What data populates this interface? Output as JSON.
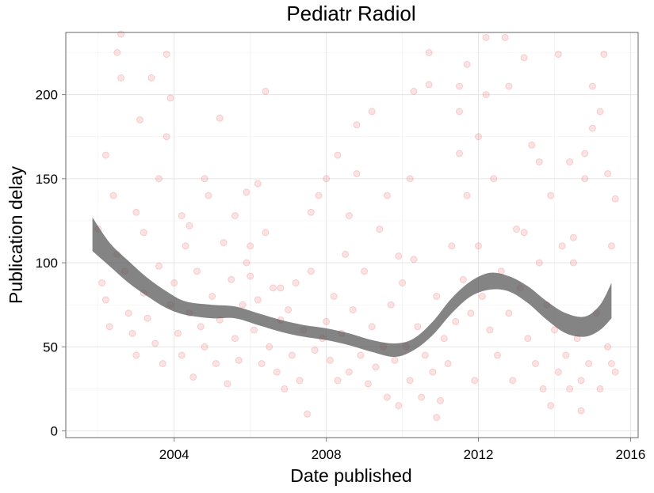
{
  "chart_data": {
    "type": "scatter",
    "title": "Pediatr Radiol",
    "xlabel": "Date published",
    "ylabel": "Publication delay",
    "xlim": [
      2001.15,
      2016.2
    ],
    "ylim": [
      -4,
      237
    ],
    "x_ticks": [
      2004,
      2008,
      2012,
      2016
    ],
    "x_tick_labels": [
      "2004",
      "2008",
      "2012",
      "2016"
    ],
    "y_ticks": [
      0,
      50,
      100,
      150,
      200
    ],
    "y_tick_labels": [
      "0",
      "50",
      "100",
      "150",
      "200"
    ],
    "grid": true,
    "point_color": "#e31a1c",
    "point_alpha": 0.12,
    "smooth_color": "#555555",
    "smooth_opacity": 0.72,
    "smooth": [
      {
        "x": 2001.85,
        "lo": 107,
        "hi": 127
      },
      {
        "x": 2002.3,
        "lo": 98,
        "hi": 112
      },
      {
        "x": 2002.8,
        "lo": 88,
        "hi": 101
      },
      {
        "x": 2003.3,
        "lo": 80,
        "hi": 91
      },
      {
        "x": 2003.8,
        "lo": 73,
        "hi": 83
      },
      {
        "x": 2004.3,
        "lo": 69,
        "hi": 77
      },
      {
        "x": 2005.0,
        "lo": 67,
        "hi": 75
      },
      {
        "x": 2005.6,
        "lo": 67,
        "hi": 74
      },
      {
        "x": 2006.2,
        "lo": 63,
        "hi": 70
      },
      {
        "x": 2006.8,
        "lo": 59,
        "hi": 66
      },
      {
        "x": 2007.4,
        "lo": 56,
        "hi": 63
      },
      {
        "x": 2008.0,
        "lo": 54,
        "hi": 61
      },
      {
        "x": 2008.6,
        "lo": 51,
        "hi": 58
      },
      {
        "x": 2009.2,
        "lo": 47,
        "hi": 54
      },
      {
        "x": 2009.8,
        "lo": 44,
        "hi": 52
      },
      {
        "x": 2010.3,
        "lo": 48,
        "hi": 55
      },
      {
        "x": 2010.8,
        "lo": 57,
        "hi": 65
      },
      {
        "x": 2011.3,
        "lo": 70,
        "hi": 79
      },
      {
        "x": 2011.8,
        "lo": 80,
        "hi": 89
      },
      {
        "x": 2012.3,
        "lo": 84,
        "hi": 94
      },
      {
        "x": 2012.8,
        "lo": 83,
        "hi": 92
      },
      {
        "x": 2013.3,
        "lo": 76,
        "hi": 86
      },
      {
        "x": 2013.8,
        "lo": 66,
        "hi": 77
      },
      {
        "x": 2014.3,
        "lo": 58,
        "hi": 70
      },
      {
        "x": 2014.8,
        "lo": 56,
        "hi": 68
      },
      {
        "x": 2015.2,
        "lo": 60,
        "hi": 75
      },
      {
        "x": 2015.5,
        "lo": 67,
        "hi": 88
      }
    ],
    "points": [
      [
        2002.0,
        120
      ],
      [
        2002.1,
        88
      ],
      [
        2002.2,
        78
      ],
      [
        2002.3,
        62
      ],
      [
        2002.4,
        140
      ],
      [
        2002.5,
        105
      ],
      [
        2002.5,
        225
      ],
      [
        2002.6,
        210
      ],
      [
        2002.7,
        95
      ],
      [
        2002.8,
        70
      ],
      [
        2002.9,
        58
      ],
      [
        2003.0,
        130
      ],
      [
        2003.0,
        45
      ],
      [
        2003.1,
        185
      ],
      [
        2003.2,
        82
      ],
      [
        2003.3,
        67
      ],
      [
        2003.4,
        210
      ],
      [
        2003.5,
        52
      ],
      [
        2003.6,
        98
      ],
      [
        2003.7,
        40
      ],
      [
        2003.8,
        175
      ],
      [
        2003.9,
        75
      ],
      [
        2003.9,
        198
      ],
      [
        2002.2,
        164
      ],
      [
        2002.6,
        236
      ],
      [
        2003.2,
        118
      ],
      [
        2003.6,
        150
      ],
      [
        2003.8,
        224
      ],
      [
        2004.0,
        88
      ],
      [
        2004.1,
        58
      ],
      [
        2004.2,
        45
      ],
      [
        2004.3,
        110
      ],
      [
        2004.4,
        70
      ],
      [
        2004.5,
        32
      ],
      [
        2004.6,
        95
      ],
      [
        2004.7,
        62
      ],
      [
        2004.8,
        50
      ],
      [
        2004.9,
        140
      ],
      [
        2005.0,
        80
      ],
      [
        2005.1,
        40
      ],
      [
        2005.2,
        66
      ],
      [
        2005.3,
        112
      ],
      [
        2005.4,
        28
      ],
      [
        2005.5,
        90
      ],
      [
        2005.6,
        55
      ],
      [
        2005.7,
        42
      ],
      [
        2005.8,
        75
      ],
      [
        2005.9,
        100
      ],
      [
        2004.4,
        122
      ],
      [
        2004.8,
        150
      ],
      [
        2005.2,
        186
      ],
      [
        2005.6,
        128
      ],
      [
        2005.9,
        142
      ],
      [
        2004.2,
        128
      ],
      [
        2006.0,
        92
      ],
      [
        2006.1,
        60
      ],
      [
        2006.2,
        78
      ],
      [
        2006.3,
        40
      ],
      [
        2006.4,
        118
      ],
      [
        2006.5,
        50
      ],
      [
        2006.6,
        85
      ],
      [
        2006.7,
        35
      ],
      [
        2006.8,
        66
      ],
      [
        2006.9,
        25
      ],
      [
        2007.0,
        72
      ],
      [
        2007.1,
        45
      ],
      [
        2007.2,
        88
      ],
      [
        2007.3,
        30
      ],
      [
        2007.4,
        60
      ],
      [
        2007.5,
        10
      ],
      [
        2007.6,
        95
      ],
      [
        2007.7,
        48
      ],
      [
        2007.8,
        140
      ],
      [
        2007.9,
        55
      ],
      [
        2006.4,
        202
      ],
      [
        2006.2,
        147
      ],
      [
        2006.8,
        85
      ],
      [
        2007.6,
        130
      ],
      [
        2006.0,
        110
      ],
      [
        2008.0,
        150
      ],
      [
        2008.0,
        65
      ],
      [
        2008.1,
        42
      ],
      [
        2008.2,
        80
      ],
      [
        2008.3,
        30
      ],
      [
        2008.4,
        58
      ],
      [
        2008.5,
        105
      ],
      [
        2008.6,
        35
      ],
      [
        2008.7,
        72
      ],
      [
        2008.8,
        182
      ],
      [
        2008.8,
        153
      ],
      [
        2008.9,
        45
      ],
      [
        2009.0,
        95
      ],
      [
        2009.1,
        28
      ],
      [
        2009.2,
        62
      ],
      [
        2009.3,
        38
      ],
      [
        2009.4,
        120
      ],
      [
        2009.5,
        50
      ],
      [
        2009.6,
        20
      ],
      [
        2009.7,
        75
      ],
      [
        2009.8,
        42
      ],
      [
        2009.9,
        15
      ],
      [
        2008.3,
        164
      ],
      [
        2009.2,
        190
      ],
      [
        2009.6,
        140
      ],
      [
        2009.9,
        104
      ],
      [
        2008.6,
        128
      ],
      [
        2010.0,
        88
      ],
      [
        2010.1,
        50
      ],
      [
        2010.2,
        30
      ],
      [
        2010.3,
        102
      ],
      [
        2010.4,
        62
      ],
      [
        2010.5,
        20
      ],
      [
        2010.6,
        45
      ],
      [
        2010.7,
        225
      ],
      [
        2010.7,
        206
      ],
      [
        2010.8,
        35
      ],
      [
        2010.9,
        80
      ],
      [
        2011.0,
        18
      ],
      [
        2011.1,
        55
      ],
      [
        2011.2,
        40
      ],
      [
        2011.3,
        110
      ],
      [
        2011.4,
        65
      ],
      [
        2011.5,
        190
      ],
      [
        2011.5,
        165
      ],
      [
        2011.6,
        90
      ],
      [
        2011.7,
        140
      ],
      [
        2011.8,
        70
      ],
      [
        2011.9,
        30
      ],
      [
        2010.3,
        202
      ],
      [
        2011.7,
        218
      ],
      [
        2011.5,
        205
      ],
      [
        2010.9,
        8
      ],
      [
        2010.2,
        150
      ],
      [
        2012.0,
        175
      ],
      [
        2012.0,
        110
      ],
      [
        2012.1,
        80
      ],
      [
        2012.2,
        200
      ],
      [
        2012.3,
        60
      ],
      [
        2012.4,
        150
      ],
      [
        2012.5,
        45
      ],
      [
        2012.6,
        95
      ],
      [
        2012.7,
        234
      ],
      [
        2012.8,
        70
      ],
      [
        2012.9,
        30
      ],
      [
        2013.0,
        120
      ],
      [
        2013.1,
        85
      ],
      [
        2013.2,
        222
      ],
      [
        2013.3,
        55
      ],
      [
        2013.4,
        170
      ],
      [
        2013.5,
        40
      ],
      [
        2013.6,
        100
      ],
      [
        2013.7,
        25
      ],
      [
        2013.8,
        75
      ],
      [
        2013.9,
        140
      ],
      [
        2012.2,
        234
      ],
      [
        2013.2,
        118
      ],
      [
        2013.6,
        160
      ],
      [
        2013.9,
        15
      ],
      [
        2012.8,
        205
      ],
      [
        2014.0,
        60
      ],
      [
        2014.1,
        35
      ],
      [
        2014.2,
        110
      ],
      [
        2014.3,
        45
      ],
      [
        2014.4,
        25
      ],
      [
        2014.5,
        100
      ],
      [
        2014.5,
        115
      ],
      [
        2014.6,
        55
      ],
      [
        2014.7,
        30
      ],
      [
        2014.8,
        165
      ],
      [
        2014.8,
        150
      ],
      [
        2014.9,
        40
      ],
      [
        2015.0,
        180
      ],
      [
        2015.0,
        205
      ],
      [
        2015.1,
        70
      ],
      [
        2015.2,
        25
      ],
      [
        2015.3,
        224
      ],
      [
        2015.4,
        50
      ],
      [
        2015.5,
        110
      ],
      [
        2015.5,
        40
      ],
      [
        2015.6,
        138
      ],
      [
        2015.6,
        35
      ],
      [
        2014.1,
        224
      ],
      [
        2014.4,
        160
      ],
      [
        2015.2,
        190
      ],
      [
        2015.4,
        153
      ],
      [
        2014.7,
        12
      ]
    ]
  }
}
